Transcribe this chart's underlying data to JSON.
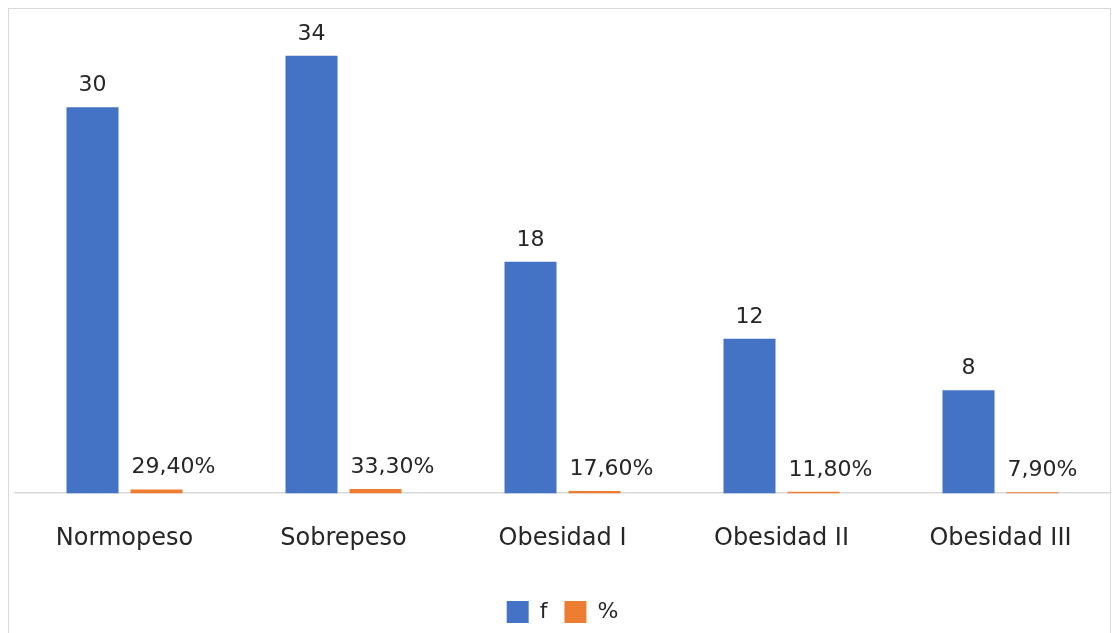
{
  "chart_data": {
    "type": "bar",
    "categories": [
      "Normopeso",
      "Sobrepeso",
      "Obesidad I",
      "Obesidad II",
      "Obesidad III"
    ],
    "series": [
      {
        "name": "f",
        "color": "#4472c4",
        "values": [
          30,
          34,
          18,
          12,
          8
        ],
        "value_labels": [
          "30",
          "34",
          "18",
          "12",
          "8"
        ]
      },
      {
        "name": "%",
        "color": "#ed7d31",
        "values": [
          0.294,
          0.333,
          0.176,
          0.118,
          0.079
        ],
        "value_labels": [
          "29,40%",
          "33,30%",
          "17,60%",
          "11,80%",
          "7,90%"
        ]
      }
    ],
    "tick_labels": "x",
    "legend": "bottom"
  }
}
